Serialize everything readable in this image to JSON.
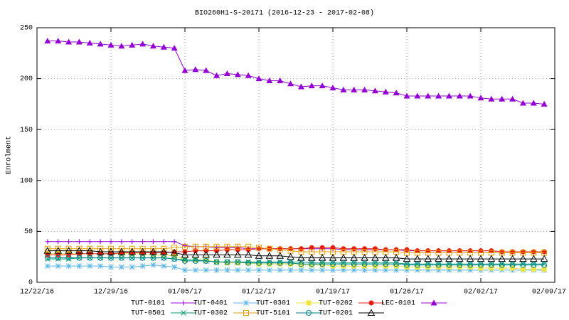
{
  "chart_data": {
    "type": "line",
    "title": "BIO260H1-S-20171 (2016-12-23 - 2017-02-08)",
    "y_label": "Enrolment",
    "x": [
      "12/23/16",
      "12/24/16",
      "12/25/16",
      "12/26/16",
      "12/27/16",
      "12/28/16",
      "12/29/16",
      "12/30/16",
      "12/31/16",
      "01/01/17",
      "01/02/17",
      "01/03/17",
      "01/04/17",
      "01/05/17",
      "01/06/17",
      "01/07/17",
      "01/08/17",
      "01/09/17",
      "01/10/17",
      "01/11/17",
      "01/12/17",
      "01/13/17",
      "01/14/17",
      "01/15/17",
      "01/16/17",
      "01/17/17",
      "01/18/17",
      "01/19/17",
      "01/20/17",
      "01/21/17",
      "01/22/17",
      "01/23/17",
      "01/24/17",
      "01/25/17",
      "01/26/17",
      "01/27/17",
      "01/28/17",
      "01/29/17",
      "01/30/17",
      "01/31/17",
      "02/01/17",
      "02/02/17",
      "02/03/17",
      "02/04/17",
      "02/05/17",
      "02/06/17",
      "02/07/17",
      "02/08/17"
    ],
    "xlim": [
      "12/22/16",
      "02/09/17"
    ],
    "xticks": [
      "12/22/16",
      "12/29/16",
      "01/05/17",
      "01/12/17",
      "01/19/17",
      "01/26/17",
      "02/02/17",
      "02/09/17"
    ],
    "ylim": [
      0,
      250
    ],
    "yticks": [
      0,
      50,
      100,
      150,
      200,
      250
    ],
    "grid": true,
    "legend": "bottom",
    "series": [
      {
        "name": "TUT-0101",
        "color": "#9400d3",
        "marker": "plus",
        "values": [
          40,
          40,
          40,
          40,
          40,
          40,
          40,
          40,
          40,
          40,
          40,
          40,
          40,
          36,
          35,
          35,
          34,
          34,
          34,
          33,
          33,
          33,
          33,
          33,
          33,
          33,
          33,
          33,
          32,
          32,
          32,
          32,
          32,
          32,
          31,
          31,
          31,
          31,
          31,
          31,
          31,
          31,
          31,
          30,
          30,
          30,
          30,
          30
        ]
      },
      {
        "name": "TUT-0401",
        "color": "#56b4e9",
        "marker": "star",
        "values": [
          16,
          16,
          16,
          16,
          16,
          16,
          15,
          15,
          15,
          16,
          17,
          16,
          15,
          12,
          12,
          12,
          12,
          12,
          12,
          12,
          12,
          12,
          12,
          12,
          12,
          12,
          12,
          12,
          12,
          12,
          12,
          12,
          12,
          12,
          12,
          12,
          12,
          12,
          12,
          12,
          12,
          12,
          12,
          12,
          12,
          12,
          12,
          12
        ]
      },
      {
        "name": "TUT-0301",
        "color": "#f0e442",
        "marker": "square-filled",
        "values": [
          28,
          28,
          28,
          28,
          28,
          28,
          28,
          28,
          28,
          28,
          27,
          27,
          26,
          22,
          22,
          22,
          20,
          19,
          19,
          19,
          18,
          18,
          18,
          18,
          17,
          17,
          17,
          16,
          16,
          16,
          16,
          16,
          16,
          16,
          15,
          15,
          15,
          15,
          15,
          15,
          15,
          14,
          14,
          14,
          14,
          13,
          13,
          13
        ]
      },
      {
        "name": "TUT-0202",
        "color": "#e51e10",
        "marker": "circle-filled",
        "values": [
          27,
          27,
          27,
          28,
          28,
          28,
          28,
          29,
          29,
          29,
          29,
          29,
          30,
          30,
          31,
          31,
          31,
          32,
          32,
          32,
          33,
          33,
          33,
          33,
          33,
          34,
          34,
          34,
          33,
          33,
          33,
          33,
          32,
          32,
          32,
          31,
          31,
          31,
          31,
          31,
          31,
          31,
          31,
          30,
          30,
          30,
          30,
          30
        ]
      },
      {
        "name": "LEC-0101",
        "color": "#9400d3",
        "marker": "triangle-filled",
        "values": [
          237,
          237,
          236,
          236,
          235,
          234,
          233,
          232,
          233,
          234,
          232,
          231,
          230,
          208,
          209,
          208,
          203,
          205,
          204,
          203,
          200,
          198,
          198,
          195,
          192,
          193,
          193,
          191,
          189,
          189,
          189,
          188,
          187,
          186,
          183,
          183,
          183,
          183,
          183,
          183,
          183,
          181,
          180,
          180,
          180,
          176,
          176,
          175
        ]
      },
      {
        "name": "TUT-0501",
        "color": "#009e73",
        "marker": "cross",
        "values": [
          23,
          23,
          23,
          24,
          24,
          24,
          24,
          24,
          24,
          24,
          24,
          24,
          23,
          22,
          22,
          21,
          20,
          20,
          20,
          20,
          20,
          20,
          20,
          20,
          20,
          19,
          19,
          19,
          19,
          19,
          19,
          19,
          19,
          19,
          18,
          18,
          18,
          18,
          18,
          18,
          18,
          18,
          18,
          18,
          18,
          18,
          18,
          18
        ]
      },
      {
        "name": "TUT-0302",
        "color": "#e69f00",
        "marker": "square-open",
        "values": [
          33,
          33,
          33,
          33,
          33,
          33,
          33,
          33,
          33,
          33,
          33,
          33,
          34,
          35,
          35,
          35,
          35,
          35,
          35,
          35,
          34,
          33,
          32,
          31,
          30,
          30,
          30,
          30,
          30,
          30,
          30,
          30,
          30,
          30,
          29,
          29,
          29,
          29,
          29,
          29,
          29,
          29,
          29,
          29,
          29,
          29,
          29,
          29
        ]
      },
      {
        "name": "TUT-5101",
        "color": "#00808f",
        "marker": "circle-open",
        "values": [
          24,
          24,
          24,
          24,
          24,
          24,
          24,
          24,
          24,
          24,
          24,
          24,
          23,
          21,
          21,
          21,
          20,
          20,
          20,
          19,
          19,
          19,
          19,
          19,
          18,
          18,
          18,
          18,
          18,
          18,
          18,
          18,
          18,
          18,
          17,
          17,
          17,
          17,
          17,
          17,
          17,
          17,
          17,
          17,
          17,
          17,
          17,
          17
        ]
      },
      {
        "name": "TUT-0201",
        "color": "#000000",
        "marker": "triangle-open",
        "values": [
          31,
          31,
          31,
          31,
          31,
          30,
          30,
          30,
          30,
          30,
          30,
          30,
          29,
          27,
          27,
          27,
          27,
          27,
          27,
          27,
          26,
          26,
          26,
          25,
          24,
          24,
          24,
          24,
          24,
          24,
          24,
          24,
          24,
          24,
          23,
          23,
          23,
          23,
          23,
          23,
          23,
          23,
          23,
          23,
          23,
          23,
          23,
          23
        ]
      }
    ]
  }
}
